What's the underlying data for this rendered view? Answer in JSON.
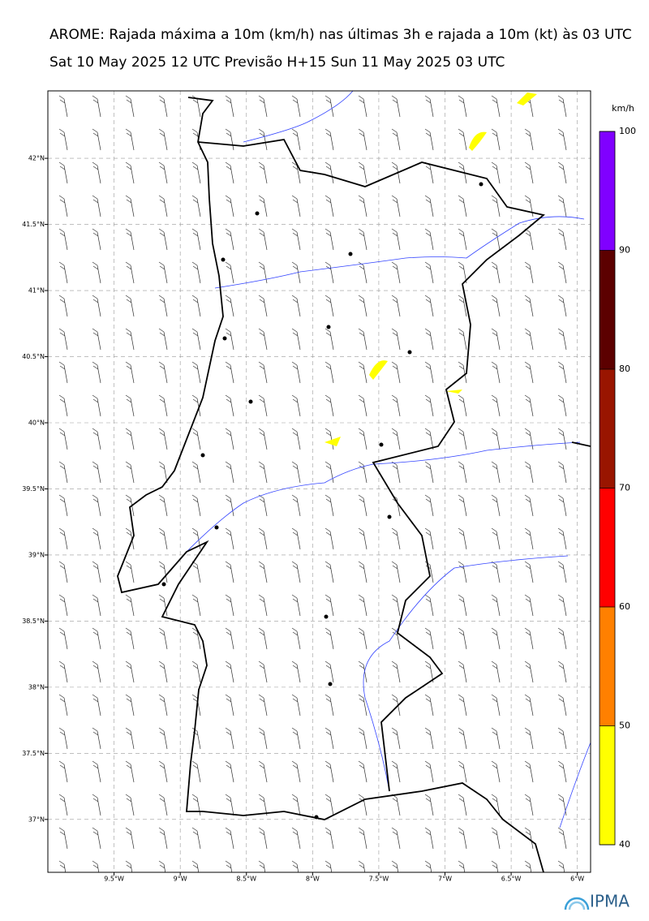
{
  "header": {
    "title": "AROME: Rajada máxima a 10m (km/h) nas últimas 3h e rajada a 10m (kt) às 03 UTC",
    "subtitle": "Sat 10 May 2025 12 UTC Previsão H+15 Sun 11 May 2025 03 UTC"
  },
  "map": {
    "lonlim": [
      -10.0,
      -5.9
    ],
    "latlim": [
      36.6,
      42.51
    ],
    "lonticks": [
      {
        "value": -9.5,
        "label": "9.5°W"
      },
      {
        "value": -9,
        "label": "9°W"
      },
      {
        "value": -8.5,
        "label": "8.5°W"
      },
      {
        "value": -8,
        "label": "8°W"
      },
      {
        "value": -7.5,
        "label": "7.5°W"
      },
      {
        "value": -7,
        "label": "7°W"
      },
      {
        "value": -6.5,
        "label": "6.5°W"
      },
      {
        "value": -6,
        "label": "6°W"
      }
    ],
    "latticks": [
      {
        "value": 42,
        "label": "42°N"
      },
      {
        "value": 41.5,
        "label": "41.5°N"
      },
      {
        "value": 41,
        "label": "41°N"
      },
      {
        "value": 40.5,
        "label": "40.5°N"
      },
      {
        "value": 40,
        "label": "40°N"
      },
      {
        "value": 39.5,
        "label": "39.5°N"
      },
      {
        "value": 39,
        "label": "39°N"
      },
      {
        "value": 38.5,
        "label": "38.5°N"
      },
      {
        "value": 38,
        "label": "38°N"
      },
      {
        "value": 37.5,
        "label": "37.5°N"
      },
      {
        "value": 37,
        "label": "37°N"
      }
    ]
  },
  "colorbar": {
    "unit": "km/h",
    "levels": [
      40,
      50,
      60,
      70,
      80,
      90,
      100
    ],
    "colors": [
      "#ffff00",
      "#ff8000",
      "#ff0000",
      "#991500",
      "#5c0000",
      "#8000ff"
    ]
  },
  "logo": "IPMA"
}
